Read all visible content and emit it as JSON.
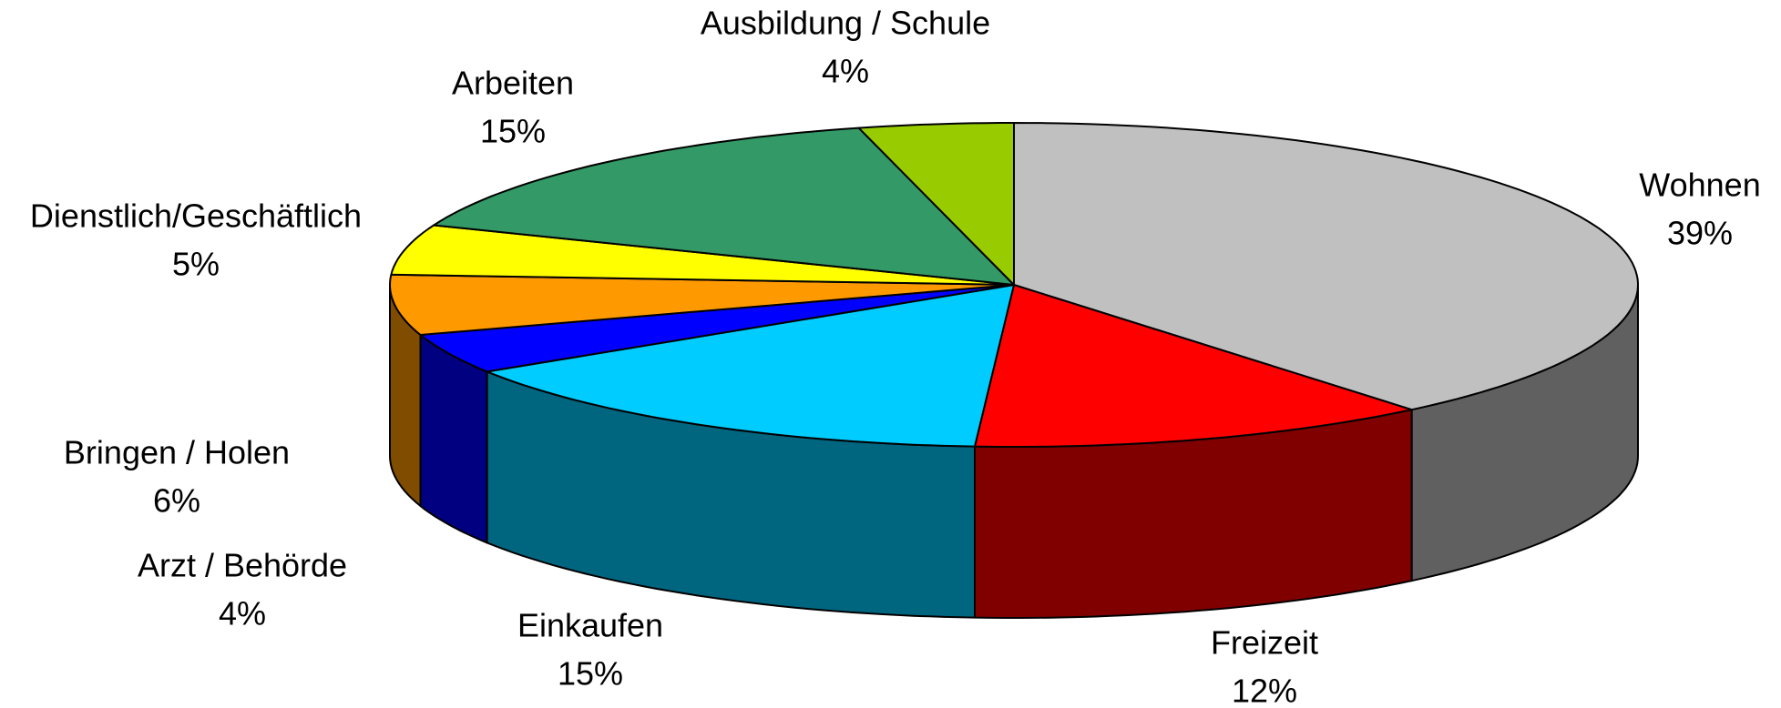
{
  "chart_data": {
    "type": "pie3d",
    "categories": [
      "Wohnen",
      "Freizeit",
      "Einkaufen",
      "Arzt / Behörde",
      "Bringen / Holen",
      "Dienstlich/Geschäftlich",
      "Arbeiten",
      "Ausbildung / Schule"
    ],
    "values": [
      39,
      12,
      15,
      4,
      6,
      5,
      15,
      4
    ],
    "value_labels": [
      "39%",
      "12%",
      "15%",
      "4%",
      "6%",
      "5%",
      "15%",
      "4%"
    ],
    "colors": [
      "#c0c0c0",
      "#ff0000",
      "#00ccff",
      "#0000ff",
      "#ff9900",
      "#ffff00",
      "#339966",
      "#99cc00"
    ]
  }
}
